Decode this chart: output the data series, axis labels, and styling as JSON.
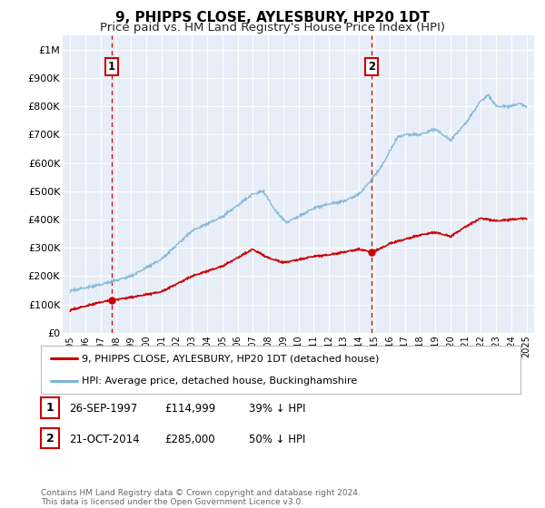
{
  "title": "9, PHIPPS CLOSE, AYLESBURY, HP20 1DT",
  "subtitle": "Price paid vs. HM Land Registry's House Price Index (HPI)",
  "xlim": [
    1994.5,
    2025.5
  ],
  "ylim": [
    0,
    1050000
  ],
  "yticks": [
    0,
    100000,
    200000,
    300000,
    400000,
    500000,
    600000,
    700000,
    800000,
    900000,
    1000000
  ],
  "ytick_labels": [
    "£0",
    "£100K",
    "£200K",
    "£300K",
    "£400K",
    "£500K",
    "£600K",
    "£700K",
    "£800K",
    "£900K",
    "£1M"
  ],
  "xtick_years": [
    1995,
    1996,
    1997,
    1998,
    1999,
    2000,
    2001,
    2002,
    2003,
    2004,
    2005,
    2006,
    2007,
    2008,
    2009,
    2010,
    2011,
    2012,
    2013,
    2014,
    2015,
    2016,
    2017,
    2018,
    2019,
    2020,
    2021,
    2022,
    2023,
    2024,
    2025
  ],
  "sale1_x": 1997.73,
  "sale1_y": 114999,
  "sale1_label": "1",
  "sale2_x": 2014.8,
  "sale2_y": 285000,
  "sale2_label": "2",
  "vline1_x": 1997.73,
  "vline2_x": 2014.8,
  "red_line_color": "#cc0000",
  "blue_line_color": "#7ab4d4",
  "bg_color": "#e8eef8",
  "grid_color": "#ffffff",
  "legend_label1": "9, PHIPPS CLOSE, AYLESBURY, HP20 1DT (detached house)",
  "legend_label2": "HPI: Average price, detached house, Buckinghamshire",
  "table_row1": [
    "1",
    "26-SEP-1997",
    "£114,999",
    "39% ↓ HPI"
  ],
  "table_row2": [
    "2",
    "21-OCT-2014",
    "£285,000",
    "50% ↓ HPI"
  ],
  "footnote": "Contains HM Land Registry data © Crown copyright and database right 2024.\nThis data is licensed under the Open Government Licence v3.0.",
  "title_fontsize": 11,
  "subtitle_fontsize": 9.5
}
